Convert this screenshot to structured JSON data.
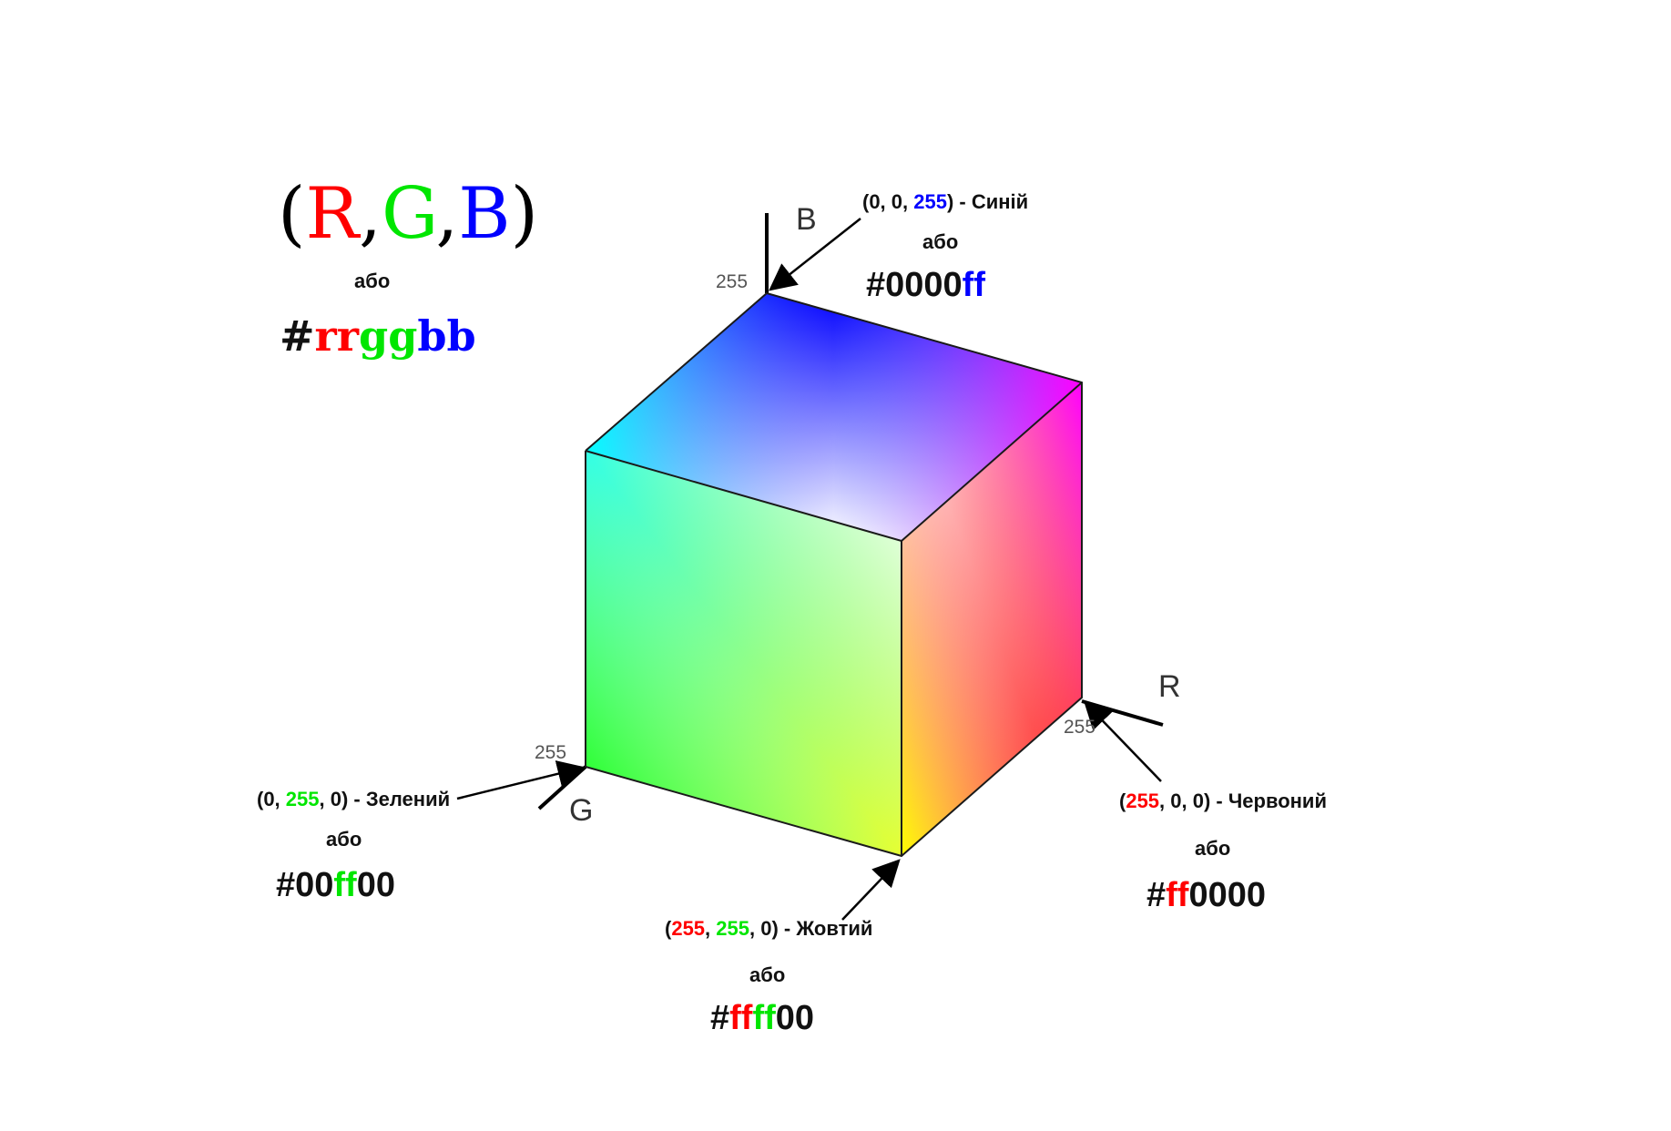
{
  "colors": {
    "red": "#ff0000",
    "green": "#00e600",
    "blue": "#0000ff",
    "black": "#111111"
  },
  "header": {
    "open": "(",
    "r": "R",
    "c1": ",",
    "g": "G",
    "c2": ",",
    "b": "B",
    "close": ")",
    "or": "або",
    "hex_hash": "#",
    "hex_rr": "rr",
    "hex_gg": "gg",
    "hex_bb": "bb"
  },
  "axes": {
    "b": "B",
    "r": "R",
    "g": "G",
    "tick_b": "255",
    "tick_r": "255",
    "tick_g": "255"
  },
  "blue": {
    "p1": "(0, 0, ",
    "v": "255",
    "p2": ") - Синій",
    "or": "або",
    "hex1": "#0000",
    "hex2": "ff"
  },
  "green": {
    "p1": "(0, ",
    "v": "255",
    "p2": ", 0) - Зелений",
    "or": "або",
    "hex1": "#00",
    "hex2": "ff",
    "hex3": "00"
  },
  "red": {
    "p1": "(",
    "v": "255",
    "p2": ", 0, 0) - Червоний",
    "or": "або",
    "hex1": "#",
    "hex2": "ff",
    "hex3": "0000"
  },
  "yellow": {
    "p1": "(",
    "v1": "255",
    "p2": ", ",
    "v2": "255",
    "p3": ", 0) - Жовтий",
    "or": "або",
    "hex1": "#",
    "hex2": "ff",
    "hex3": "ff",
    "hex4": "00"
  }
}
